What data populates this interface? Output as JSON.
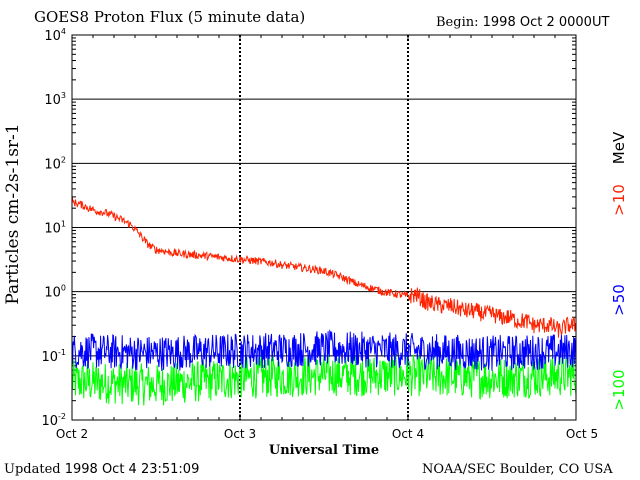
{
  "header": {
    "title": "GOES8 Proton Flux (5 minute data)",
    "begin_label": "Begin:",
    "begin_value": "1998 Oct 2 0000UT"
  },
  "footer": {
    "updated_label": "Updated",
    "updated_value": "1998 Oct  4 23:51:09",
    "credit": "NOAA/SEC Boulder, CO USA"
  },
  "chart_data": {
    "type": "line",
    "title": "GOES8 Proton Flux (5 minute data)",
    "xlabel": "Universal Time",
    "ylabel": "Particles cm-2s-1sr-1",
    "y_scale": "log",
    "ylim": [
      0.01,
      10000
    ],
    "xlim_days": [
      0,
      3
    ],
    "y_ticks": [
      {
        "base": "10",
        "exp": "4"
      },
      {
        "base": "10",
        "exp": "3"
      },
      {
        "base": "10",
        "exp": "2"
      },
      {
        "base": "10",
        "exp": "1"
      },
      {
        "base": "10",
        "exp": "0"
      },
      {
        "base": "10",
        "exp": "-1"
      },
      {
        "base": "10",
        "exp": "-2"
      }
    ],
    "x_ticks": [
      "Oct 2",
      "Oct 3",
      "Oct 4",
      "Oct 5"
    ],
    "energy_unit": "MeV",
    "series": [
      {
        "name": ">10",
        "color": "#ff2200",
        "x_days": [
          0,
          0.05,
          0.1,
          0.15,
          0.2,
          0.25,
          0.3,
          0.35,
          0.4,
          0.45,
          0.5,
          0.55,
          0.6,
          0.65,
          0.7,
          0.75,
          0.8,
          0.85,
          0.9,
          0.95,
          1.0,
          1.05,
          1.1,
          1.15,
          1.2,
          1.25,
          1.3,
          1.35,
          1.4,
          1.45,
          1.5,
          1.55,
          1.6,
          1.65,
          1.7,
          1.75,
          1.8,
          1.85,
          1.9,
          1.95,
          2.0,
          2.05,
          2.1,
          2.15,
          2.2,
          2.25,
          2.3,
          2.35,
          2.4,
          2.45,
          2.5,
          2.55,
          2.6,
          2.65,
          2.7,
          2.75,
          2.8,
          2.85,
          2.9,
          2.95,
          3.0
        ],
        "values": [
          25,
          23,
          20,
          18,
          17,
          15,
          13,
          11,
          8,
          5.5,
          4.5,
          4.3,
          4.0,
          3.9,
          3.8,
          3.7,
          3.6,
          3.5,
          3.4,
          3.3,
          3.2,
          3.1,
          3.0,
          2.9,
          2.8,
          2.6,
          2.5,
          2.4,
          2.3,
          2.2,
          2.1,
          1.9,
          1.7,
          1.5,
          1.3,
          1.2,
          1.1,
          1.0,
          0.95,
          0.9,
          0.85,
          0.9,
          0.7,
          0.65,
          0.6,
          0.6,
          0.55,
          0.5,
          0.5,
          0.45,
          0.45,
          0.4,
          0.4,
          0.35,
          0.35,
          0.3,
          0.3,
          0.3,
          0.25,
          0.3,
          0.3
        ]
      },
      {
        "name": ">50",
        "color": "#0000ff",
        "x_days": [
          0,
          0.5,
          1.0,
          1.5,
          2.0,
          2.5,
          3.0
        ],
        "values": [
          0.12,
          0.11,
          0.12,
          0.13,
          0.12,
          0.11,
          0.12
        ]
      },
      {
        "name": ">100",
        "color": "#00ff00",
        "x_days": [
          0,
          0.5,
          1.0,
          1.5,
          2.0,
          2.5,
          3.0
        ],
        "values": [
          0.04,
          0.035,
          0.045,
          0.05,
          0.05,
          0.045,
          0.05
        ]
      }
    ]
  }
}
